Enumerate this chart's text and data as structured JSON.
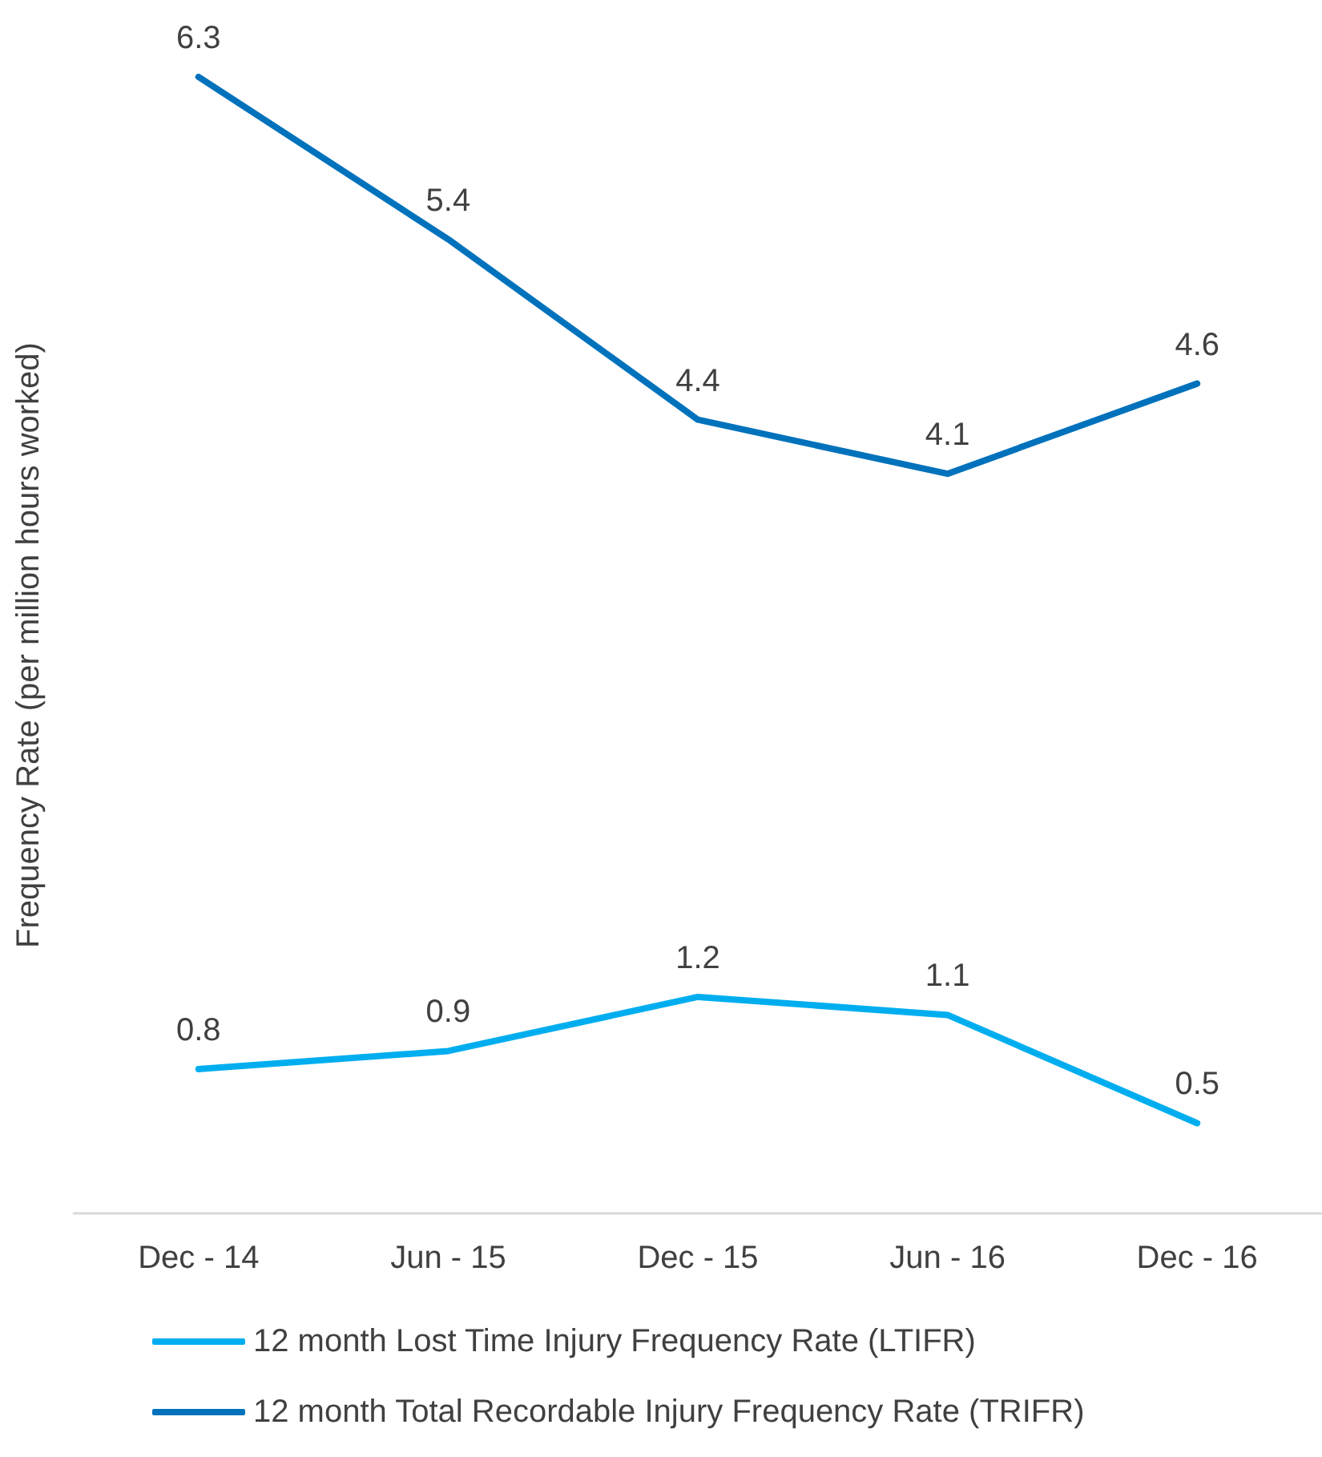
{
  "chart_data": {
    "type": "line",
    "ylabel": "Frequency Rate (per million hours worked)",
    "categories": [
      "Dec - 14",
      "Jun - 15",
      "Dec - 15",
      "Jun - 16",
      "Dec - 16"
    ],
    "series": [
      {
        "name": "12 month Lost Time Injury Frequency Rate (LTIFR)",
        "color": "#00aeef",
        "values": [
          0.8,
          0.9,
          1.2,
          1.1,
          0.5
        ]
      },
      {
        "name": "12 month Total Recordable Injury Frequency Rate (TRIFR)",
        "color": "#0072bc",
        "values": [
          6.3,
          5.4,
          4.4,
          4.1,
          4.6
        ]
      }
    ],
    "relative": false,
    "data_labels": true,
    "legend": "bottom",
    "grid": false,
    "marker": "none",
    "line_style": "solid"
  }
}
